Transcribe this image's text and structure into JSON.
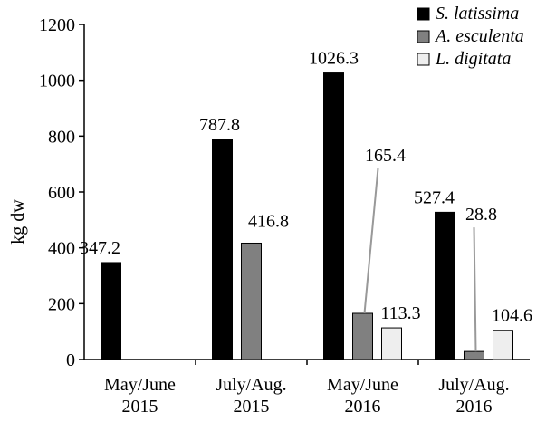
{
  "chart_data": {
    "type": "bar",
    "ylabel": "kg dw",
    "xlabel": "",
    "ylim": [
      0,
      1200
    ],
    "yticks": [
      0,
      200,
      400,
      600,
      800,
      1000,
      1200
    ],
    "categories": [
      [
        "May/June",
        "2015"
      ],
      [
        "July/Aug.",
        "2015"
      ],
      [
        "May/June",
        "2016"
      ],
      [
        "July/Aug.",
        "2016"
      ]
    ],
    "series": [
      {
        "name": "S. latissima",
        "color": "#000000",
        "values": [
          347.2,
          787.8,
          1026.3,
          527.4
        ],
        "labels": [
          "347.2",
          "787.8",
          "1026.3",
          "527.4"
        ]
      },
      {
        "name": "A. esculenta",
        "color": "#808080",
        "values": [
          null,
          416.8,
          165.4,
          28.8
        ],
        "labels": [
          "",
          "416.8",
          "165.4",
          "28.8"
        ]
      },
      {
        "name": "L. digitata",
        "color": "#eeeeee",
        "values": [
          null,
          null,
          113.3,
          104.6
        ],
        "labels": [
          "",
          "",
          "113.3",
          "104.6"
        ]
      }
    ],
    "legend_position": "top-right",
    "grid": false
  }
}
